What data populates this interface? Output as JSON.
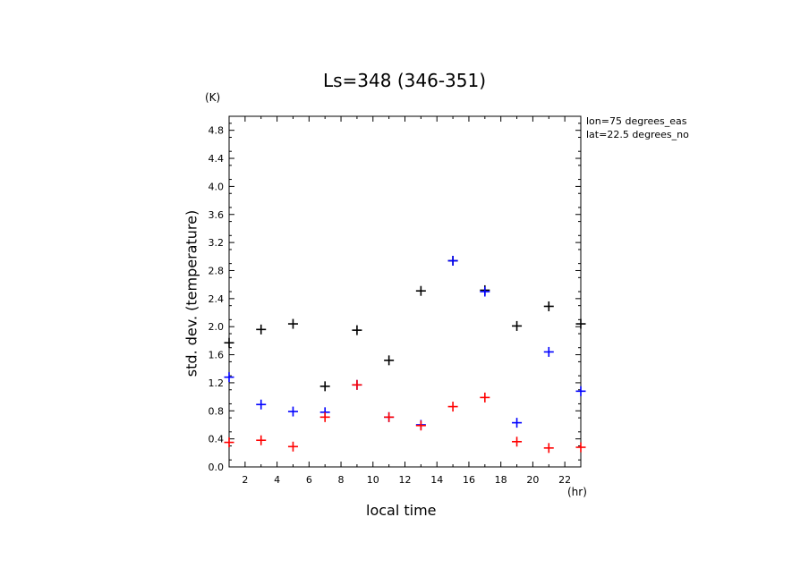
{
  "title": "Ls=348 (346-351)",
  "y_unit": "(K)",
  "x_unit": "(hr)",
  "annotations": [
    "lon=75 degrees_eas",
    "lat=22.5 degrees_no"
  ],
  "colors": {
    "series_black": "#000000",
    "series_blue": "#0000ff",
    "series_red": "#ff0000",
    "axis": "#000000"
  },
  "chart_data": {
    "type": "scatter",
    "title": "Ls=348 (346-351)",
    "xlabel": "local time",
    "ylabel": "std. dev. (temperature)",
    "x_unit": "hr",
    "y_unit": "K",
    "xlim": [
      1,
      23
    ],
    "ylim": [
      0.0,
      5.0
    ],
    "x_ticks": [
      2,
      4,
      6,
      8,
      10,
      12,
      14,
      16,
      18,
      20,
      22
    ],
    "y_ticks": [
      0.0,
      0.4,
      0.8,
      1.2,
      1.6,
      2.0,
      2.4,
      2.8,
      3.2,
      3.6,
      4.0,
      4.4,
      4.8
    ],
    "x_tick_labels": [
      "2",
      "4",
      "6",
      "8",
      "10",
      "12",
      "14",
      "16",
      "18",
      "20",
      "22"
    ],
    "y_tick_labels": [
      "0.0",
      "0.4",
      "0.8",
      "1.2",
      "1.6",
      "2.0",
      "2.4",
      "2.8",
      "3.2",
      "3.6",
      "4.0",
      "4.4",
      "4.8"
    ],
    "grid": false,
    "marker": "plus",
    "series": [
      {
        "color": "#000000",
        "x": [
          1,
          3,
          5,
          7,
          9,
          11,
          13,
          15,
          17,
          19,
          21,
          23
        ],
        "y": [
          1.77,
          1.96,
          2.04,
          1.15,
          1.95,
          1.52,
          2.51,
          2.94,
          2.52,
          2.01,
          2.29,
          2.04
        ]
      },
      {
        "color": "#0000ff",
        "x": [
          1,
          3,
          5,
          7,
          9,
          11,
          13,
          15,
          17,
          19,
          21,
          23
        ],
        "y": [
          1.28,
          0.89,
          0.79,
          0.78,
          1.17,
          0.71,
          0.6,
          2.94,
          2.5,
          0.63,
          1.64,
          1.08
        ]
      },
      {
        "color": "#ff0000",
        "x": [
          1,
          3,
          5,
          7,
          9,
          11,
          13,
          15,
          17,
          19,
          21,
          23
        ],
        "y": [
          0.35,
          0.38,
          0.29,
          0.71,
          1.17,
          0.71,
          0.59,
          0.86,
          0.99,
          0.36,
          0.27,
          0.28
        ]
      }
    ]
  }
}
